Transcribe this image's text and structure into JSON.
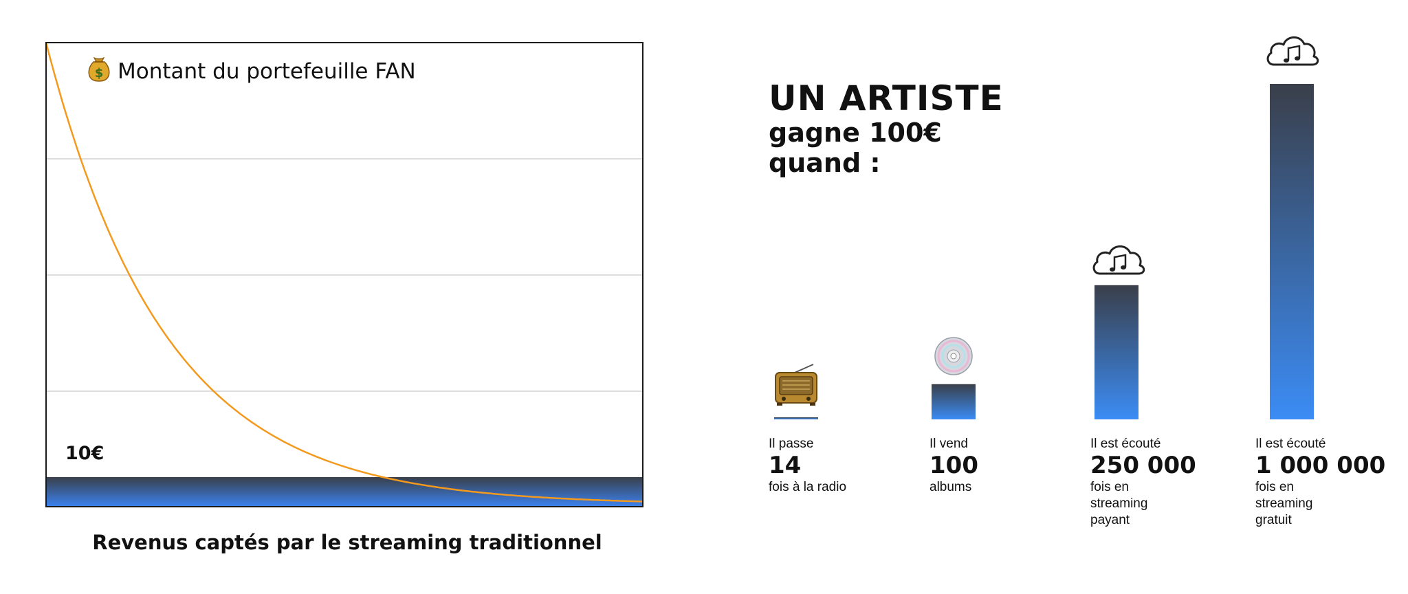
{
  "left_chart": {
    "legend_label": "Montant du portefeuille FAN",
    "legend_icon": "money-bag-icon",
    "level_label": "10€",
    "caption": "Revenus captés par le streaming traditionnel",
    "curve_color": "#f39a1e",
    "band_color_top": "#3a3f4a",
    "band_color_bottom": "#3b82f0"
  },
  "headline": {
    "line1": "UN ARTISTE",
    "line2": "gagne 100€",
    "line3": "quand :"
  },
  "chart_data": {
    "type": "bar",
    "categories": [
      "radio",
      "albums",
      "streaming payant",
      "streaming gratuit"
    ],
    "values": [
      14,
      100,
      250000,
      1000000
    ],
    "bars": [
      {
        "icon": "radio-icon",
        "pre": "Il passe",
        "number": "14",
        "post": [
          "fois à la radio"
        ],
        "height_ratio": 0.006
      },
      {
        "icon": "cd-icon",
        "pre": "Il vend",
        "number": "100",
        "post": [
          "albums"
        ],
        "height_ratio": 0.105
      },
      {
        "icon": "music-cloud-icon",
        "pre": "Il est écouté",
        "number": "250 000",
        "post": [
          "fois en",
          "streaming",
          "payant"
        ],
        "height_ratio": 0.4
      },
      {
        "icon": "music-cloud-icon",
        "pre": "Il est écouté",
        "number": "1 000 000",
        "post": [
          "fois en",
          "streaming",
          "gratuit"
        ],
        "height_ratio": 1.0
      }
    ]
  }
}
